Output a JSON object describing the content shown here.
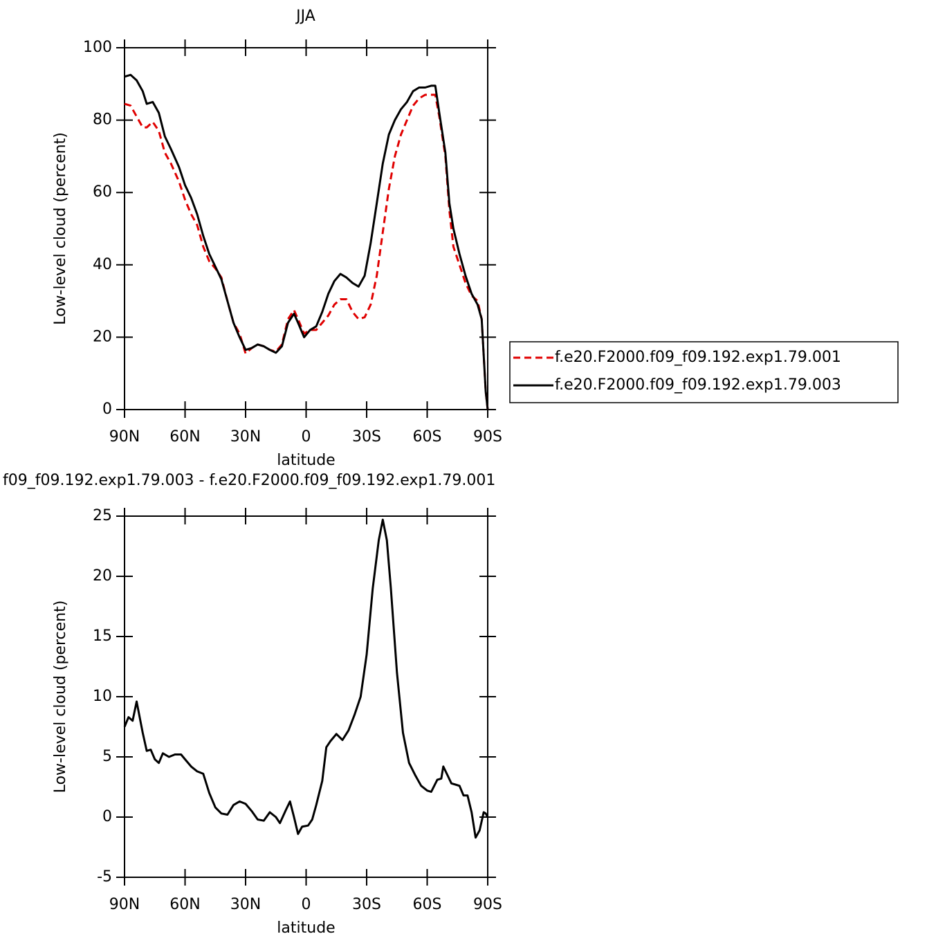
{
  "chart_data": [
    {
      "type": "line",
      "title": "JJA",
      "xlabel": "latitude",
      "ylabel": "Low-level cloud (percent)",
      "xlim": [
        90,
        -90
      ],
      "ylim": [
        0,
        100
      ],
      "xticks": [
        {
          "value": 90,
          "label": "90N"
        },
        {
          "value": 60,
          "label": "60N"
        },
        {
          "value": 30,
          "label": "30N"
        },
        0,
        {
          "value": -30,
          "label": "30S"
        },
        {
          "value": -60,
          "label": "60S"
        },
        {
          "value": -90,
          "label": "90S"
        }
      ],
      "yticks": [
        0,
        20,
        40,
        60,
        80,
        100
      ],
      "legend": "right",
      "x": [
        90,
        87,
        84,
        81,
        79,
        76,
        73,
        70,
        67,
        63,
        60,
        57,
        54,
        51,
        48,
        45,
        42,
        39,
        36,
        33,
        30,
        27,
        24,
        21,
        18,
        15,
        12,
        9,
        6,
        4,
        1,
        -2,
        -5,
        -8,
        -11,
        -14,
        -17,
        -20,
        -23,
        -26,
        -29,
        -32,
        -35,
        -38,
        -41,
        -44,
        -47,
        -50,
        -53,
        -56,
        -59,
        -62,
        -64,
        -66,
        -69,
        -71,
        -73,
        -76,
        -79,
        -82,
        -85,
        -87,
        -89,
        -90
      ],
      "series": [
        {
          "name": "f.e20.F2000.f09_f09.192.exp1.79.001",
          "color": "#e00000",
          "dash": true,
          "values": [
            84.5,
            84,
            81,
            78,
            78,
            79.5,
            77,
            71,
            68,
            63,
            58,
            54,
            51,
            45,
            41,
            39,
            36.5,
            30,
            24,
            21,
            15.5,
            17,
            18,
            17.5,
            16.5,
            16,
            18,
            25,
            27.5,
            25,
            21,
            22,
            22,
            24,
            26,
            29,
            30.5,
            30.5,
            27,
            25,
            25.5,
            29,
            37,
            49,
            61,
            70,
            76,
            80,
            84,
            86,
            87,
            87,
            87,
            81,
            70,
            55,
            45,
            40,
            35,
            31.5,
            30,
            25,
            5,
            0
          ]
        },
        {
          "name": "f.e20.F2000.f09_f09.192.exp1.79.003",
          "color": "#000000",
          "dash": false,
          "values": [
            92,
            92.5,
            91,
            88,
            84.5,
            85,
            82,
            75.5,
            72,
            67,
            62,
            58.5,
            54,
            48,
            43,
            39.5,
            36,
            30,
            24,
            20,
            16.5,
            17,
            18,
            17.5,
            16.5,
            15.7,
            17.5,
            24,
            26.5,
            24,
            20,
            22,
            23,
            27,
            32,
            35.5,
            37.5,
            36.5,
            35,
            34,
            37,
            46,
            57,
            68,
            76,
            80,
            83,
            85,
            88,
            89,
            89,
            89.5,
            89.5,
            82,
            71,
            57,
            50,
            43,
            37,
            32,
            29,
            25,
            5,
            0
          ]
        }
      ]
    },
    {
      "type": "line",
      "title": "f09_f09.192.exp1.79.003 - f.e20.F2000.f09_f09.192.exp1.79.001",
      "xlabel": "latitude",
      "ylabel": "Low-level cloud (percent)",
      "xlim": [
        90,
        -90
      ],
      "ylim": [
        -5,
        25
      ],
      "xticks": [
        {
          "value": 90,
          "label": "90N"
        },
        {
          "value": 60,
          "label": "60N"
        },
        {
          "value": 30,
          "label": "30N"
        },
        0,
        {
          "value": -30,
          "label": "30S"
        },
        {
          "value": -60,
          "label": "60S"
        },
        {
          "value": -90,
          "label": "90S"
        }
      ],
      "yticks": [
        -5,
        0,
        5,
        10,
        15,
        20,
        25
      ],
      "x": [
        90,
        88,
        86,
        84,
        81,
        79,
        77,
        75,
        73,
        71,
        68,
        65,
        62,
        60,
        57,
        54,
        51,
        48,
        45,
        42,
        39,
        36,
        33,
        30,
        27,
        24,
        21,
        18,
        15,
        13,
        10,
        8,
        6,
        4,
        2,
        -1,
        -3,
        -5,
        -8,
        -10,
        -12,
        -15,
        -18,
        -21,
        -24,
        -27,
        -30,
        -33,
        -36,
        -38,
        -40,
        -42,
        -45,
        -48,
        -51,
        -54,
        -57,
        -60,
        -62,
        -65,
        -67,
        -68,
        -70,
        -72,
        -74,
        -76,
        -78,
        -80,
        -82,
        -84,
        -86,
        -88,
        -89,
        -90
      ],
      "series": [
        {
          "color": "#000000",
          "dash": false,
          "values": [
            7.5,
            8.3,
            8,
            9.6,
            7,
            5.5,
            5.6,
            4.8,
            4.5,
            5.3,
            5,
            5.2,
            5.2,
            4.8,
            4.2,
            3.8,
            3.6,
            2,
            0.8,
            0.3,
            0.2,
            1,
            1.3,
            1.1,
            0.5,
            -0.2,
            -0.3,
            0.4,
            0,
            -0.5,
            0.6,
            1.3,
            0,
            -1.4,
            -0.8,
            -0.7,
            -0.2,
            1,
            3,
            5.8,
            6.3,
            6.9,
            6.4,
            7.2,
            8.5,
            10,
            13.5,
            19,
            23,
            24.7,
            23,
            19,
            12,
            7,
            4.5,
            3.5,
            2.6,
            2.2,
            2.1,
            3.1,
            3.2,
            4.2,
            3.5,
            2.8,
            2.7,
            2.6,
            1.8,
            1.8,
            0.4,
            -1.7,
            -1.1,
            0.4,
            0.3,
            0
          ]
        }
      ]
    }
  ]
}
